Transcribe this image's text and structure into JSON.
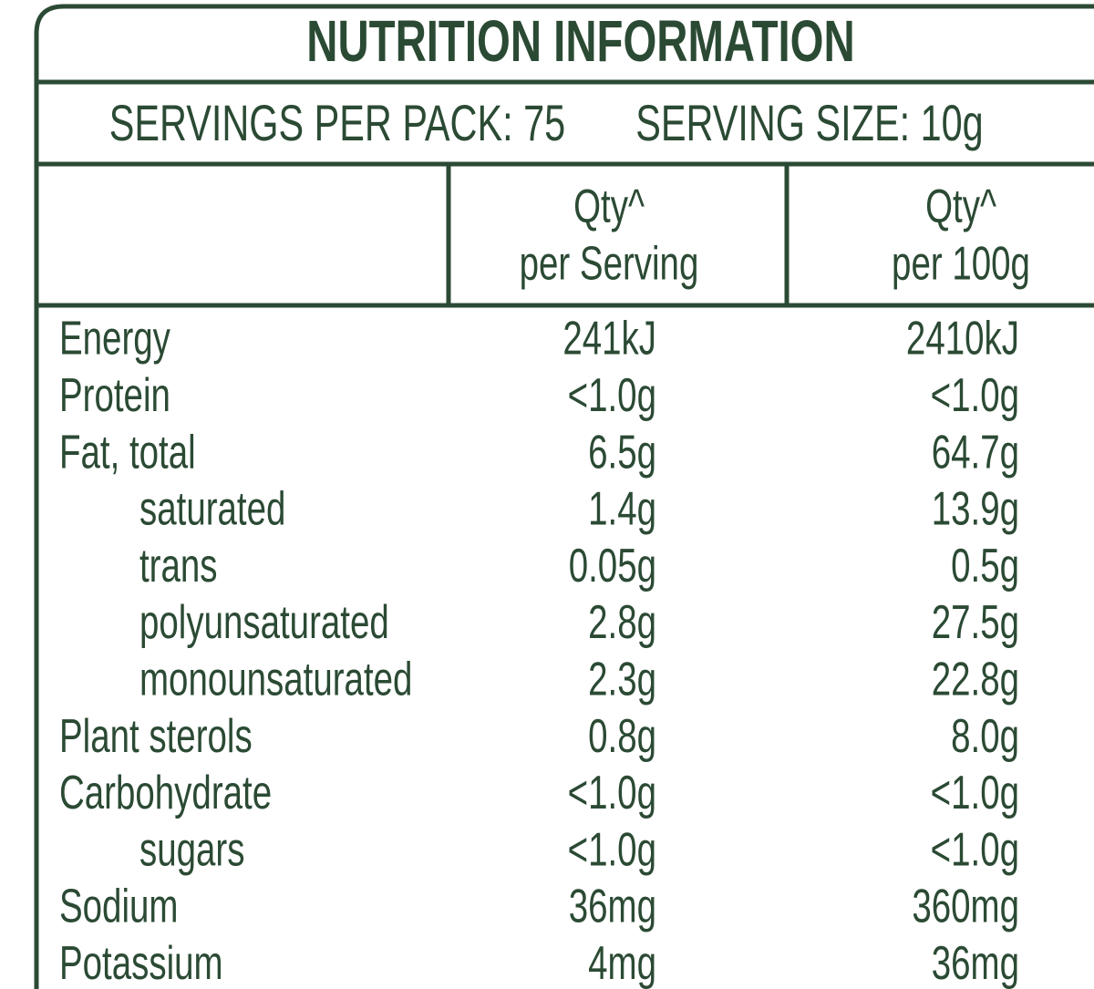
{
  "header": {
    "title": "NUTRITION INFORMATION",
    "servings_per_pack": "SERVINGS PER PACK: 75",
    "serving_size": "SERVING SIZE: 10g"
  },
  "table": {
    "columns": [
      [
        "Qty^",
        "per Serving"
      ],
      [
        "Qty^",
        "per 100g"
      ]
    ],
    "rows": [
      {
        "name": "Energy",
        "per_serving": "241kJ",
        "per_100g": "2410kJ",
        "sub": false
      },
      {
        "name": "Protein",
        "per_serving": "<1.0g",
        "per_100g": "<1.0g",
        "sub": false
      },
      {
        "name": "Fat, total",
        "per_serving": "6.5g",
        "per_100g": "64.7g",
        "sub": false
      },
      {
        "name": "saturated",
        "per_serving": "1.4g",
        "per_100g": "13.9g",
        "sub": true
      },
      {
        "name": "trans",
        "per_serving": "0.05g",
        "per_100g": "0.5g",
        "sub": true
      },
      {
        "name": "polyunsaturated",
        "per_serving": "2.8g",
        "per_100g": "27.5g",
        "sub": true
      },
      {
        "name": "monounsaturated",
        "per_serving": "2.3g",
        "per_100g": "22.8g",
        "sub": true
      },
      {
        "name": "Plant sterols",
        "per_serving": "0.8g",
        "per_100g": "8.0g",
        "sub": false
      },
      {
        "name": "Carbohydrate",
        "per_serving": "<1.0g",
        "per_100g": "<1.0g",
        "sub": false
      },
      {
        "name": "sugars",
        "per_serving": "<1.0g",
        "per_100g": "<1.0g",
        "sub": true
      },
      {
        "name": "Sodium",
        "per_serving": "36mg",
        "per_100g": "360mg",
        "sub": false
      },
      {
        "name": "Potassium",
        "per_serving": "4mg",
        "per_100g": "36mg",
        "sub": false
      }
    ]
  }
}
